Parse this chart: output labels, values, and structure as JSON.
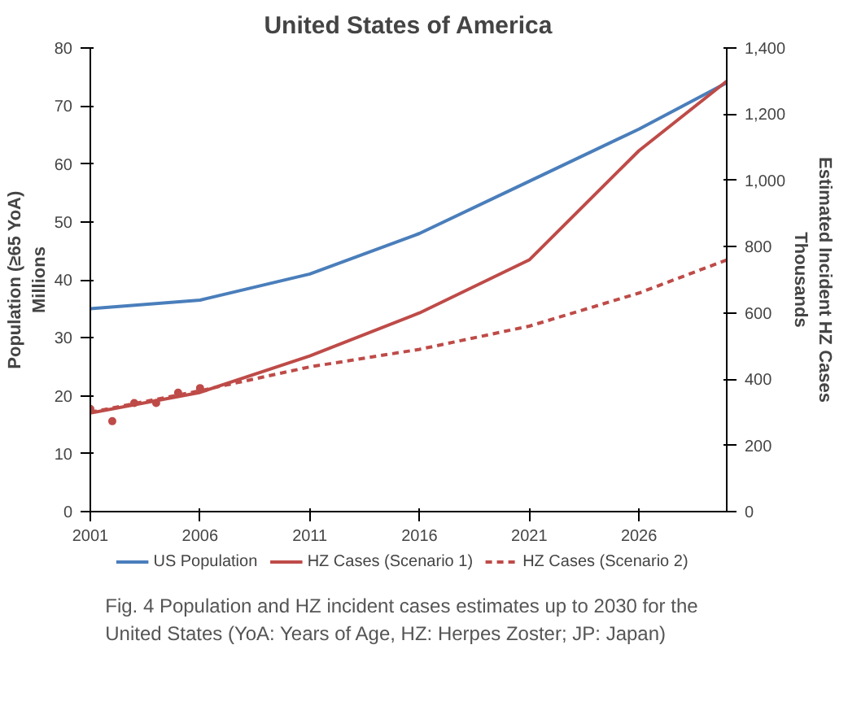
{
  "chart_data": {
    "type": "line",
    "title": "United States of America",
    "ylabel": "Population (≥65 YoA)",
    "y2label": "Estimated Incident HZ Cases",
    "annotations": [
      "Millions",
      "Thousands",
      "Fig. 4 Population and HZ incident cases estimates up to 2030 for the United States (YoA: Years of Age, HZ: Herpes Zoster; JP: Japan)"
    ],
    "xlim": [
      2001,
      2030
    ],
    "xticks": [
      2001,
      2006,
      2011,
      2016,
      2021,
      2026
    ],
    "ylim": [
      0,
      80
    ],
    "yticks": [
      0,
      10,
      20,
      30,
      40,
      50,
      60,
      70,
      80
    ],
    "y2lim": [
      0,
      1400
    ],
    "y2ticks": [
      0,
      200,
      400,
      600,
      800,
      {
        "value": 1000,
        "label": "1,000"
      },
      {
        "value": 1200,
        "label": "1,200"
      },
      {
        "value": 1400,
        "label": "1,400"
      }
    ],
    "x": [
      2001,
      2006,
      2011,
      2016,
      2021,
      2026,
      2030
    ],
    "legend": "bottom",
    "grid": false,
    "series": [
      {
        "name": "US Population",
        "color": "#4a7ebb",
        "values": [
          35,
          36.5,
          41,
          48,
          57,
          66,
          74
        ]
      },
      {
        "name": "HZ Cases (Scenario 1)",
        "color": "#be4b48",
        "axis": "y2",
        "values": [
          298,
          360,
          470,
          600,
          760,
          1090,
          1300
        ]
      },
      {
        "name": "HZ Cases (Scenario 2)",
        "color": "#be4b48",
        "axis": "y2",
        "line_style": "dashed",
        "values": [
          300,
          365,
          437,
          490,
          560,
          660,
          760
        ]
      },
      {
        "type": "scatter",
        "color": "#be4b48",
        "axis": "y2",
        "marker": "circle",
        "x": [
          2001,
          2002,
          2003,
          2004,
          2005,
          2006
        ],
        "values": [
          310,
          273,
          328,
          328,
          359,
          373
        ]
      }
    ]
  }
}
